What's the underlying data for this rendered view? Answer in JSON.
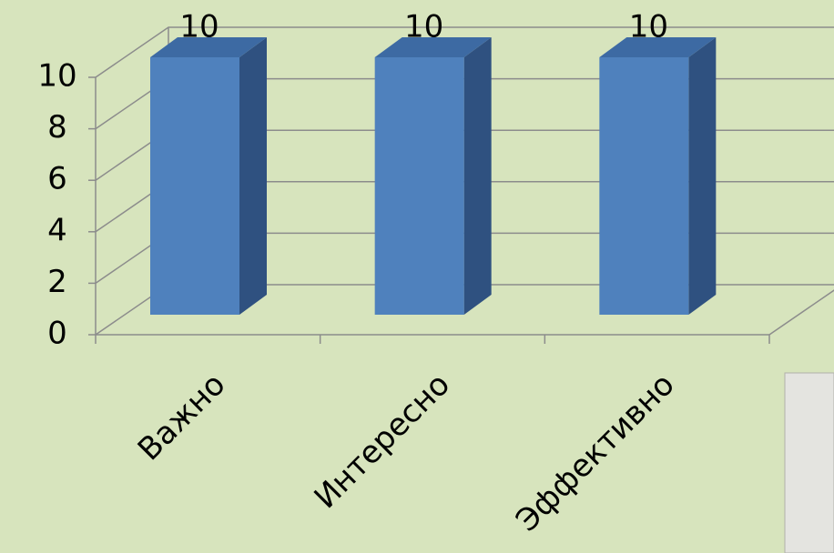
{
  "chart_data": {
    "type": "bar",
    "categories": [
      "Важно",
      "Интересно",
      "Эффективно"
    ],
    "values": [
      10,
      10,
      10
    ],
    "color": "#4f81bd",
    "ylim": [
      0,
      10
    ],
    "yticks": [
      0,
      2,
      4,
      6,
      8,
      10
    ],
    "grid": true
  }
}
